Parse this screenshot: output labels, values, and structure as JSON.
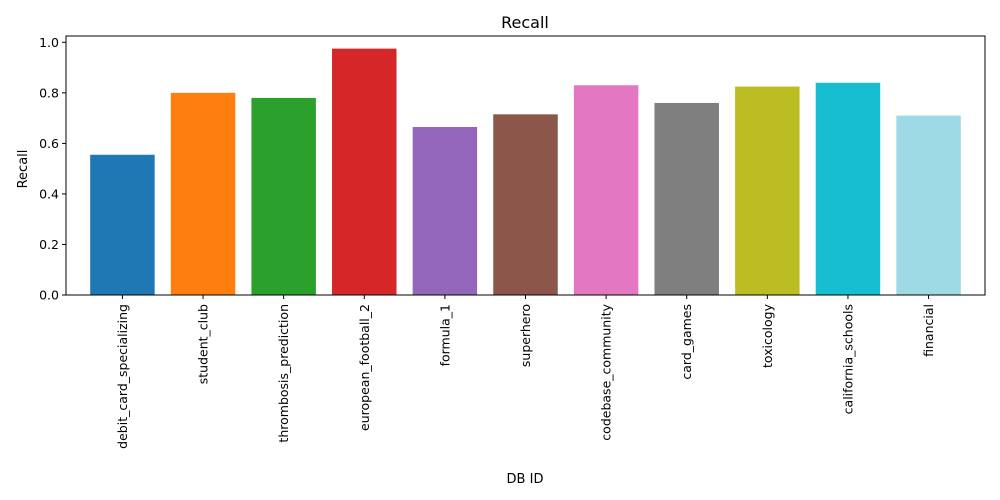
{
  "chart_data": {
    "type": "bar",
    "title": "Recall",
    "xlabel": "DB ID",
    "ylabel": "Recall",
    "ylim": [
      0,
      1.025
    ],
    "yticks": [
      "0.0",
      "0.2",
      "0.4",
      "0.6",
      "0.8",
      "1.0"
    ],
    "grid": false,
    "legend": "none",
    "categories": [
      "debit_card_specializing",
      "student_club",
      "thrombosis_prediction",
      "european_football_2",
      "formula_1",
      "superhero",
      "codebase_community",
      "card_games",
      "toxicology",
      "california_schools",
      "financial"
    ],
    "values": [
      0.555,
      0.8,
      0.78,
      0.975,
      0.665,
      0.715,
      0.83,
      0.76,
      0.825,
      0.84,
      0.71
    ],
    "colors": [
      "#1f77b4",
      "#ff7f0e",
      "#2ca02c",
      "#d62728",
      "#9467bd",
      "#8c564b",
      "#e377c2",
      "#7f7f7f",
      "#bcbd22",
      "#17becf",
      "#9edae5"
    ]
  }
}
